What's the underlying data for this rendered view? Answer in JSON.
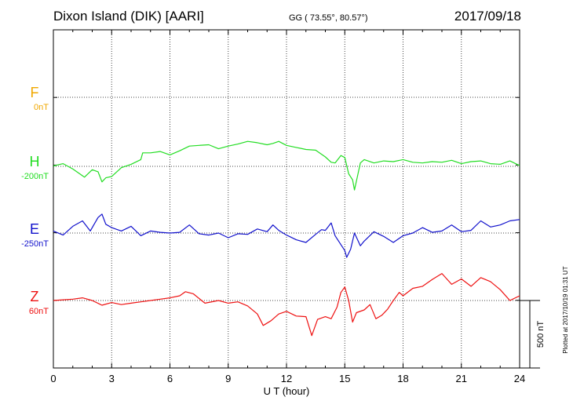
{
  "header": {
    "station": "Dixon Island (DIK)  [AARI]",
    "coords": "GG ( 73.55°,  80.57°)",
    "date": "2017/09/18"
  },
  "plotted_note": "Plotted at 2017/10/19 01:31  UT",
  "chart_data": {
    "type": "line",
    "xlabel": "U T (hour)",
    "xlim": [
      0,
      24
    ],
    "xticks": [
      "0",
      "3",
      "6",
      "9",
      "12",
      "15",
      "18",
      "21",
      "24"
    ],
    "scale_bar_label": "500 nT",
    "scale_bar_nT": 500,
    "series": [
      {
        "name": "F",
        "baseline_label": "0nT",
        "color": "#f0a800",
        "x": [],
        "y": []
      },
      {
        "name": "H",
        "baseline_label": "-200nT",
        "color": "#22dd22",
        "x": [
          0,
          0.5,
          1.0,
          1.5,
          1.6,
          2.0,
          2.3,
          2.5,
          2.7,
          3.0,
          3.5,
          4.0,
          4.5,
          4.6,
          5.0,
          5.5,
          6.0,
          6.5,
          7.0,
          7.5,
          8.0,
          8.5,
          9.0,
          9.5,
          10.0,
          10.5,
          11.0,
          11.3,
          11.6,
          12.0,
          12.5,
          13.0,
          13.5,
          14.0,
          14.3,
          14.5,
          14.8,
          15.0,
          15.2,
          15.4,
          15.5,
          15.8,
          16.0,
          16.5,
          17.0,
          17.5,
          18.0,
          18.5,
          19.0,
          19.5,
          20.0,
          20.5,
          21.0,
          21.5,
          22.0,
          22.5,
          23.0,
          23.5,
          24.0
        ],
        "y": [
          -197,
          -180,
          -220,
          -270,
          -280,
          -225,
          -240,
          -315,
          -285,
          -275,
          -210,
          -185,
          -150,
          -100,
          -100,
          -90,
          -115,
          -85,
          -50,
          -45,
          -40,
          -70,
          -50,
          -35,
          -15,
          -25,
          -40,
          -30,
          -15,
          -45,
          -60,
          -75,
          -80,
          -130,
          -170,
          -175,
          -120,
          -135,
          -255,
          -300,
          -375,
          -175,
          -150,
          -175,
          -160,
          -165,
          -150,
          -170,
          -175,
          -165,
          -170,
          -155,
          -180,
          -165,
          -160,
          -180,
          -185,
          -160,
          -195
        ]
      },
      {
        "name": "E",
        "baseline_label": "-250nT",
        "color": "#1111cc",
        "x": [
          0,
          0.5,
          1.0,
          1.5,
          1.9,
          2.3,
          2.5,
          2.7,
          3.0,
          3.5,
          4.0,
          4.5,
          5.0,
          5.5,
          6.0,
          6.5,
          7.0,
          7.5,
          8.0,
          8.5,
          9.0,
          9.5,
          10.0,
          10.5,
          11.0,
          11.3,
          11.6,
          12.0,
          12.5,
          13.0,
          13.5,
          13.8,
          14.0,
          14.3,
          14.5,
          15.0,
          15.1,
          15.3,
          15.5,
          15.8,
          16.0,
          16.5,
          17.0,
          17.5,
          18.0,
          18.5,
          19.0,
          19.5,
          20.0,
          20.5,
          21.0,
          21.5,
          22.0,
          22.5,
          23.0,
          23.5,
          24.0
        ],
        "y": [
          -235,
          -265,
          -200,
          -160,
          -235,
          -135,
          -110,
          -185,
          -210,
          -235,
          -200,
          -270,
          -235,
          -245,
          -250,
          -245,
          -190,
          -255,
          -265,
          -250,
          -285,
          -255,
          -260,
          -220,
          -240,
          -190,
          -230,
          -265,
          -300,
          -320,
          -260,
          -225,
          -230,
          -175,
          -270,
          -380,
          -430,
          -370,
          -250,
          -345,
          -310,
          -240,
          -275,
          -320,
          -270,
          -250,
          -210,
          -245,
          -235,
          -190,
          -240,
          -230,
          -160,
          -205,
          -190,
          -160,
          -150
        ]
      },
      {
        "name": "Z",
        "baseline_label": "60nT",
        "color": "#ee1111",
        "x": [
          0,
          0.5,
          1.0,
          1.5,
          2.0,
          2.5,
          3.0,
          3.5,
          4.0,
          4.5,
          5.0,
          5.5,
          6.0,
          6.5,
          6.8,
          7.2,
          7.8,
          8.5,
          9.0,
          9.5,
          10.0,
          10.5,
          10.8,
          11.2,
          11.6,
          12.0,
          12.5,
          13.0,
          13.3,
          13.6,
          14.0,
          14.3,
          14.6,
          14.8,
          15.0,
          15.2,
          15.4,
          15.6,
          16.0,
          16.3,
          16.6,
          16.9,
          17.2,
          17.5,
          17.8,
          18.0,
          18.5,
          19.0,
          19.5,
          20.0,
          20.5,
          21.0,
          21.5,
          22.0,
          22.5,
          23.0,
          23.5,
          24.0
        ],
        "y": [
          60,
          65,
          70,
          80,
          60,
          25,
          45,
          30,
          40,
          50,
          60,
          70,
          80,
          95,
          125,
          110,
          40,
          60,
          40,
          50,
          20,
          -40,
          -125,
          -90,
          -40,
          -20,
          -55,
          -60,
          -200,
          -80,
          -60,
          -75,
          10,
          120,
          160,
          60,
          -100,
          -30,
          -10,
          30,
          -75,
          -50,
          -5,
          60,
          120,
          95,
          150,
          165,
          215,
          260,
          180,
          220,
          165,
          230,
          200,
          140,
          60,
          95
        ]
      }
    ]
  }
}
